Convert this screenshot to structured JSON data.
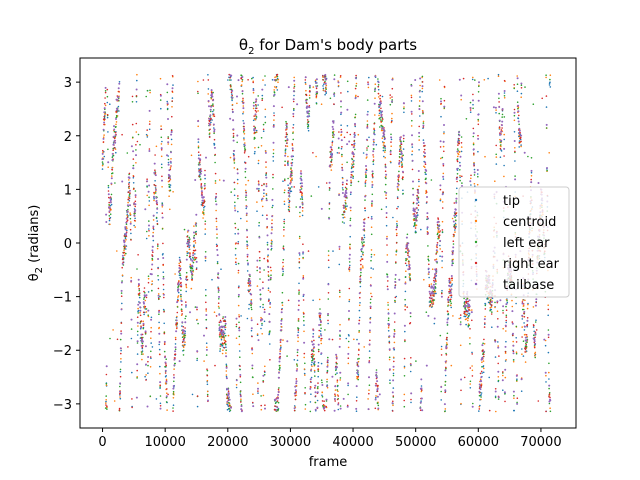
{
  "chart_data": {
    "type": "scatter",
    "title": "θ2 for Dam's body parts",
    "title_parts": {
      "symbol": "θ",
      "subscript": "2",
      "rest": " for Dam's body parts"
    },
    "xlabel": "frame",
    "ylabel": "θ2 (radians)",
    "ylabel_parts": {
      "symbol": "θ",
      "subscript": "2",
      "rest": " (radians)"
    },
    "xlim": [
      -3600,
      75600
    ],
    "ylim": [
      -3.45,
      3.45
    ],
    "x_ticks": [
      0,
      10000,
      20000,
      30000,
      40000,
      50000,
      60000,
      70000
    ],
    "x_tick_labels": [
      "0",
      "10000",
      "20000",
      "30000",
      "40000",
      "50000",
      "60000",
      "70000"
    ],
    "y_ticks": [
      -3,
      -2,
      -1,
      0,
      1,
      2,
      3
    ],
    "y_tick_labels": [
      "−3",
      "−2",
      "−1",
      "0",
      "1",
      "2",
      "3"
    ],
    "grid": false,
    "legend_position": "center-right",
    "series": [
      {
        "name": "tip",
        "color": "#1f77b4",
        "marker": "dot"
      },
      {
        "name": "centroid",
        "color": "#ff7f0e",
        "marker": "dot"
      },
      {
        "name": "left ear",
        "color": "#2ca02c",
        "marker": "dot"
      },
      {
        "name": "right ear",
        "color": "#d62728",
        "marker": "dot"
      },
      {
        "name": "tailbase",
        "color": "#9467bd",
        "marker": "dot"
      }
    ],
    "frame_range": [
      0,
      71500
    ],
    "value_range": [
      -3.1416,
      3.1416
    ]
  }
}
